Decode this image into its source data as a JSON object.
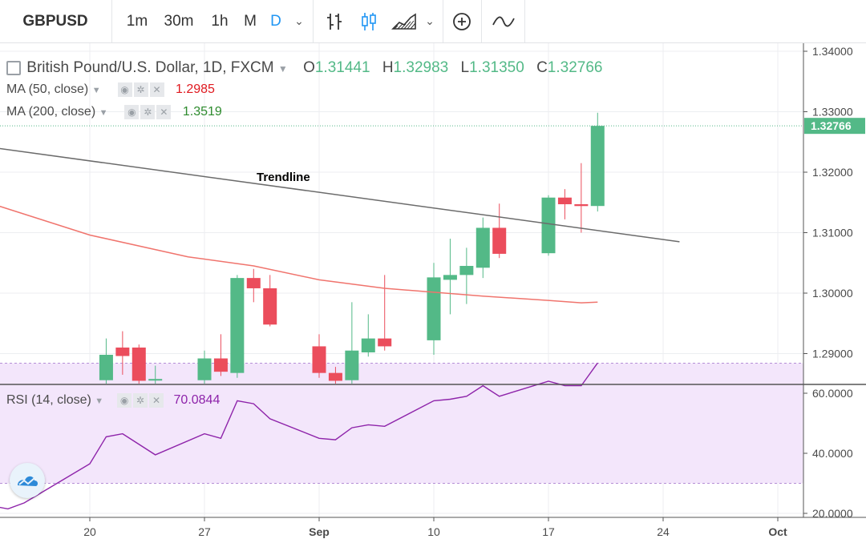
{
  "toolbar": {
    "symbol": "GBPUSD",
    "intervals": [
      "1m",
      "30m",
      "1h",
      "M",
      "D"
    ],
    "active_interval": "D"
  },
  "legend": {
    "title": "British Pound/U.S. Dollar, 1D, FXCM",
    "open_label": "O",
    "open": "1.31441",
    "high_label": "H",
    "high": "1.32983",
    "low_label": "L",
    "low": "1.31350",
    "close_label": "C",
    "close": "1.32766",
    "ma50_label": "MA (50, close)",
    "ma50_value": "1.2985",
    "ma200_label": "MA (200, close)",
    "ma200_value": "1.3519",
    "rsi_label": "RSI (14, close)",
    "rsi_value": "70.0844"
  },
  "colors": {
    "up": "#53b987",
    "down": "#eb4d5c",
    "ma50": "#f0746d",
    "trendline": "#6b6b6b",
    "rsi": "#8e24aa",
    "rsi_band": "#f3e6fb",
    "ma50_text": "#e0191f",
    "ma200_text": "#2e8b2e",
    "price_tag": "#53b987"
  },
  "chart_data": [
    {
      "type": "candlestick",
      "title": "British Pound/U.S. Dollar, 1D, FXCM",
      "x_labels": [
        "20",
        "27",
        "Sep",
        "10",
        "17",
        "24",
        "Oct"
      ],
      "y_ticks": [
        "1.34000",
        "1.33000",
        "1.32000",
        "1.31000",
        "1.30000",
        "1.29000"
      ],
      "ylim": [
        1.285,
        1.3415
      ],
      "current_price": "1.32766",
      "annotation": "Trendline",
      "candles": [
        {
          "day": 21,
          "o": 1.2856,
          "h": 1.2925,
          "l": 1.285,
          "c": 1.2898
        },
        {
          "day": 22,
          "o": 1.291,
          "h": 1.2937,
          "l": 1.2865,
          "c": 1.2896
        },
        {
          "day": 23,
          "o": 1.291,
          "h": 1.2915,
          "l": 1.285,
          "c": 1.2855
        },
        {
          "day": 24,
          "o": 1.2856,
          "h": 1.288,
          "l": 1.285,
          "c": 1.2858
        },
        {
          "day": 27,
          "o": 1.2856,
          "h": 1.2905,
          "l": 1.285,
          "c": 1.2892
        },
        {
          "day": 28,
          "o": 1.2892,
          "h": 1.2932,
          "l": 1.2863,
          "c": 1.287
        },
        {
          "day": 29,
          "o": 1.2868,
          "h": 1.303,
          "l": 1.286,
          "c": 1.3025
        },
        {
          "day": 30,
          "o": 1.3025,
          "h": 1.304,
          "l": 1.2985,
          "c": 1.3008
        },
        {
          "day": 31,
          "o": 1.3008,
          "h": 1.303,
          "l": 1.2945,
          "c": 1.2948
        },
        {
          "day": 34,
          "o": 1.2912,
          "h": 1.2932,
          "l": 1.286,
          "c": 1.2868
        },
        {
          "day": 35,
          "o": 1.2868,
          "h": 1.2878,
          "l": 1.285,
          "c": 1.2855
        },
        {
          "day": 36,
          "o": 1.2856,
          "h": 1.2985,
          "l": 1.285,
          "c": 1.2905
        },
        {
          "day": 37,
          "o": 1.2902,
          "h": 1.2965,
          "l": 1.2895,
          "c": 1.2925
        },
        {
          "day": 38,
          "o": 1.2925,
          "h": 1.303,
          "l": 1.2905,
          "c": 1.2912
        },
        {
          "day": 41,
          "o": 1.2922,
          "h": 1.305,
          "l": 1.2898,
          "c": 1.3026
        },
        {
          "day": 42,
          "o": 1.3022,
          "h": 1.309,
          "l": 1.2965,
          "c": 1.303
        },
        {
          "day": 43,
          "o": 1.303,
          "h": 1.3075,
          "l": 1.2982,
          "c": 1.3045
        },
        {
          "day": 44,
          "o": 1.3042,
          "h": 1.3125,
          "l": 1.3025,
          "c": 1.3108
        },
        {
          "day": 45,
          "o": 1.3108,
          "h": 1.3148,
          "l": 1.3058,
          "c": 1.3065
        },
        {
          "day": 48,
          "o": 1.3066,
          "h": 1.3162,
          "l": 1.3062,
          "c": 1.3158
        },
        {
          "day": 49,
          "o": 1.3158,
          "h": 1.3172,
          "l": 1.3122,
          "c": 1.3147
        },
        {
          "day": 50,
          "o": 1.3147,
          "h": 1.3215,
          "l": 1.31,
          "c": 1.3144
        },
        {
          "day": 51,
          "o": 1.31441,
          "h": 1.32983,
          "l": 1.3135,
          "c": 1.32766
        }
      ],
      "ma50": [
        {
          "day": 14,
          "v": 1.3148
        },
        {
          "day": 20,
          "v": 1.3096
        },
        {
          "day": 26,
          "v": 1.306
        },
        {
          "day": 30,
          "v": 1.3045
        },
        {
          "day": 34,
          "v": 1.3022
        },
        {
          "day": 38,
          "v": 1.3008
        },
        {
          "day": 44,
          "v": 1.2995
        },
        {
          "day": 48,
          "v": 1.2988
        },
        {
          "day": 50,
          "v": 1.2984
        },
        {
          "day": 51,
          "v": 1.2985
        }
      ],
      "trendline": [
        {
          "day": 14,
          "v": 1.3241
        },
        {
          "day": 56,
          "v": 1.3085
        }
      ]
    },
    {
      "type": "line",
      "title": "RSI (14, close)",
      "y_ticks": [
        "60.0000",
        "40.0000",
        "20.0000"
      ],
      "band": [
        30,
        70
      ],
      "rsi": [
        {
          "day": 14,
          "v": 22.5
        },
        {
          "day": 15,
          "v": 21.5
        },
        {
          "day": 16,
          "v": 23.5
        },
        {
          "day": 18,
          "v": 30.0
        },
        {
          "day": 20,
          "v": 36.5
        },
        {
          "day": 21,
          "v": 45.5
        },
        {
          "day": 22,
          "v": 46.5
        },
        {
          "day": 24,
          "v": 39.5
        },
        {
          "day": 27,
          "v": 46.5
        },
        {
          "day": 28,
          "v": 45.0
        },
        {
          "day": 29,
          "v": 57.5
        },
        {
          "day": 30,
          "v": 56.5
        },
        {
          "day": 31,
          "v": 51.5
        },
        {
          "day": 34,
          "v": 45.0
        },
        {
          "day": 35,
          "v": 44.5
        },
        {
          "day": 36,
          "v": 48.5
        },
        {
          "day": 37,
          "v": 49.5
        },
        {
          "day": 38,
          "v": 49.0
        },
        {
          "day": 41,
          "v": 57.5
        },
        {
          "day": 42,
          "v": 58.0
        },
        {
          "day": 43,
          "v": 59.0
        },
        {
          "day": 44,
          "v": 62.5
        },
        {
          "day": 45,
          "v": 59.0
        },
        {
          "day": 48,
          "v": 64.0
        },
        {
          "day": 49,
          "v": 62.5
        },
        {
          "day": 50,
          "v": 62.5
        },
        {
          "day": 51,
          "v": 70.0844
        }
      ]
    }
  ]
}
